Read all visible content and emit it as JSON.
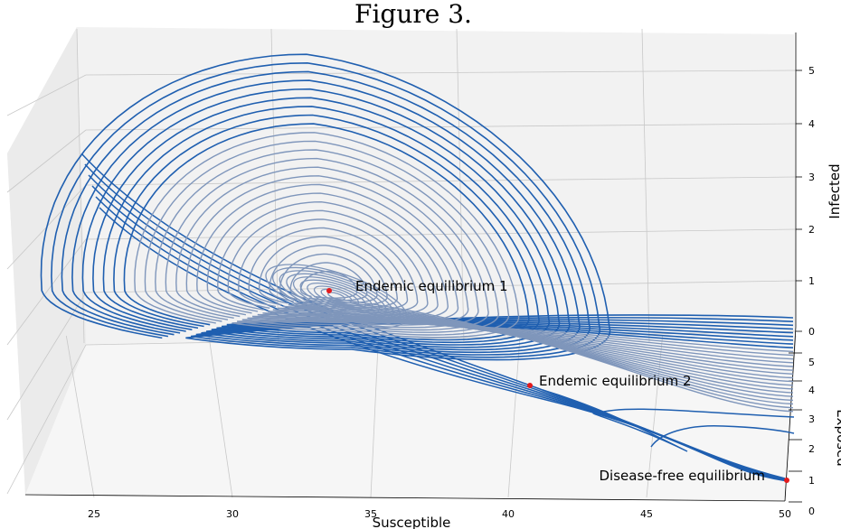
{
  "figure_title": "Figure 3.",
  "chart_data": {
    "type": "line",
    "projection": "3d",
    "title": "Figure 3.",
    "xlabel": "Susceptible",
    "ylabel": "Exposed",
    "zlabel": "Infected",
    "x_ticks": [
      25,
      30,
      35,
      40,
      45,
      50
    ],
    "y_ticks": [
      0,
      1,
      2,
      3,
      4,
      5
    ],
    "z_ticks": [
      0,
      1,
      2,
      3,
      4,
      5
    ],
    "xlim": [
      22.5,
      50.5
    ],
    "ylim": [
      0,
      5.5
    ],
    "zlim": [
      0,
      5.5
    ],
    "grid": true,
    "colors": {
      "outer_trajectories": "#1f5fb0",
      "inner_trajectories": "#7f96bb",
      "equilibria": "#e41a1c",
      "pane": "#f2f2f2",
      "grid": "#c8c8c8"
    },
    "equilibria": [
      {
        "label": "Endemic equilibrium 1",
        "S": 33.5,
        "E": 3.2,
        "I": 1.0
      },
      {
        "label": "Endemic equilibrium 2",
        "S": 40.8,
        "E": 1.6,
        "I": 0.6
      },
      {
        "label": "Disease-free equilibrium",
        "S": 50.0,
        "E": 0.0,
        "I": 0.0
      }
    ]
  }
}
